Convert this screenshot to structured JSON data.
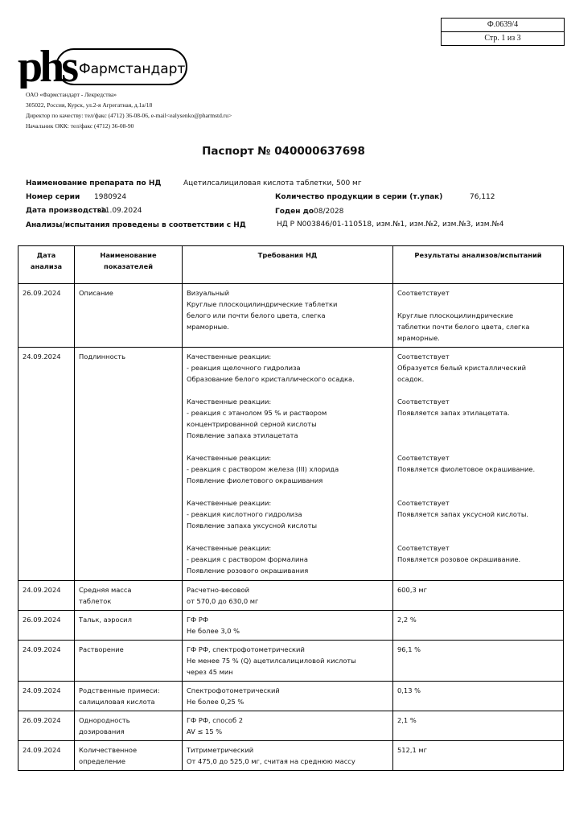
{
  "form": {
    "code": "Ф.0639/4",
    "page": "Стр. 1 из 3"
  },
  "logo": {
    "mark": "phs",
    "brand": "Фармстандарт"
  },
  "company": [
    "ОАО «Фармстандарт - Лекредства»",
    "305022, Россия, Курск, ул.2-я Агрегатная, д.1а/18",
    "Директор по качеству: тел/факс (4712) 36-08-06, e-mail<ealysenko@pharmstd.ru>",
    "Начальник ОКК: тел/факс (4712) 36-08-90"
  ],
  "title": "Паспорт № 040000637698",
  "fields": {
    "name_label": "Наименование препарата по НД",
    "name_value": "Ацетилсалициловая кислота таблетки, 500 мг",
    "series_label": "Номер серии",
    "series_value": "1980924",
    "qty_label": "Количество продукции в серии (т.упак)",
    "qty_value": "76,112",
    "prod_label": "Дата производства",
    "prod_value": "11.09.2024",
    "exp_label": "Годен до",
    "exp_value": "08/2028",
    "nd_label": "Анализы/испытания проведены в соответствии с НД",
    "nd_value": "НД Р N003846/01-110518, изм.№1, изм.№2, изм.№3, изм.№4"
  },
  "table": {
    "headers": [
      "Дата\nанализа",
      "Наименование\nпоказателей",
      "Требования НД",
      "Результаты анализов/испытаний"
    ],
    "rows": [
      [
        "26.09.2024",
        "Описание",
        "Визуальный\nКруглые плоскоцилиндрические таблетки\nбелого или почти белого цвета, слегка\nмраморные.",
        "Соответствует\n\nКруглые плоскоцилиндрические\nтаблетки почти белого цвета, слегка\nмраморные."
      ],
      [
        "24.09.2024",
        "Подлинность",
        "Качественные реакции:\n- реакция щелочного гидролиза\nОбразование белого кристаллического осадка.\n\nКачественные реакции:\n- реакция с этанолом 95 % и раствором\nконцентрированной серной кислоты\nПоявление запаха этилацетата\n\nКачественные реакции:\n- реакция с раствором железа (III) хлорида\nПоявление фиолетового окрашивания\n\nКачественные реакции:\n- реакция кислотного гидролиза\nПоявление запаха уксусной кислоты\n\nКачественные реакции:\n- реакция с раствором формалина\nПоявление розового окрашивания",
        "Соответствует\nОбразуется белый кристаллический\nосадок.\n\nСоответствует\nПоявляется запах этилацетата.\n\n\n\nСоответствует\nПоявляется фиолетовое окрашивание.\n\n\nСоответствует\nПоявляется запах уксусной кислоты.\n\n\nСоответствует\nПоявляется розовое окрашивание."
      ],
      [
        "24.09.2024",
        "Средняя масса\nтаблеток",
        "Расчетно-весовой\nот 570,0 до 630,0 мг",
        "600,3 мг"
      ],
      [
        "26.09.2024",
        "Тальк, аэросил",
        "ГФ РФ\nНе более 3,0 %",
        "2,2 %"
      ],
      [
        "24.09.2024",
        "Растворение",
        "ГФ РФ, спектрофотометрический\nНе менее 75 % (Q) ацетилсалициловой кислоты\nчерез 45 мин",
        "96,1 %"
      ],
      [
        "24.09.2024",
        "Родственные примеси:\nсалициловая кислота",
        "Спектрофотометрический\nНе более 0,25 %",
        "0,13 %"
      ],
      [
        "26.09.2024",
        "Однородность\nдозирования",
        "ГФ РФ, способ 2\nAV ≤ 15 %",
        "2,1 %"
      ],
      [
        "24.09.2024",
        "Количественное\nопределение",
        "Титриметрический\nОт 475,0 до 525,0 мг, считая на среднюю массу",
        "512,1 мг"
      ]
    ]
  }
}
